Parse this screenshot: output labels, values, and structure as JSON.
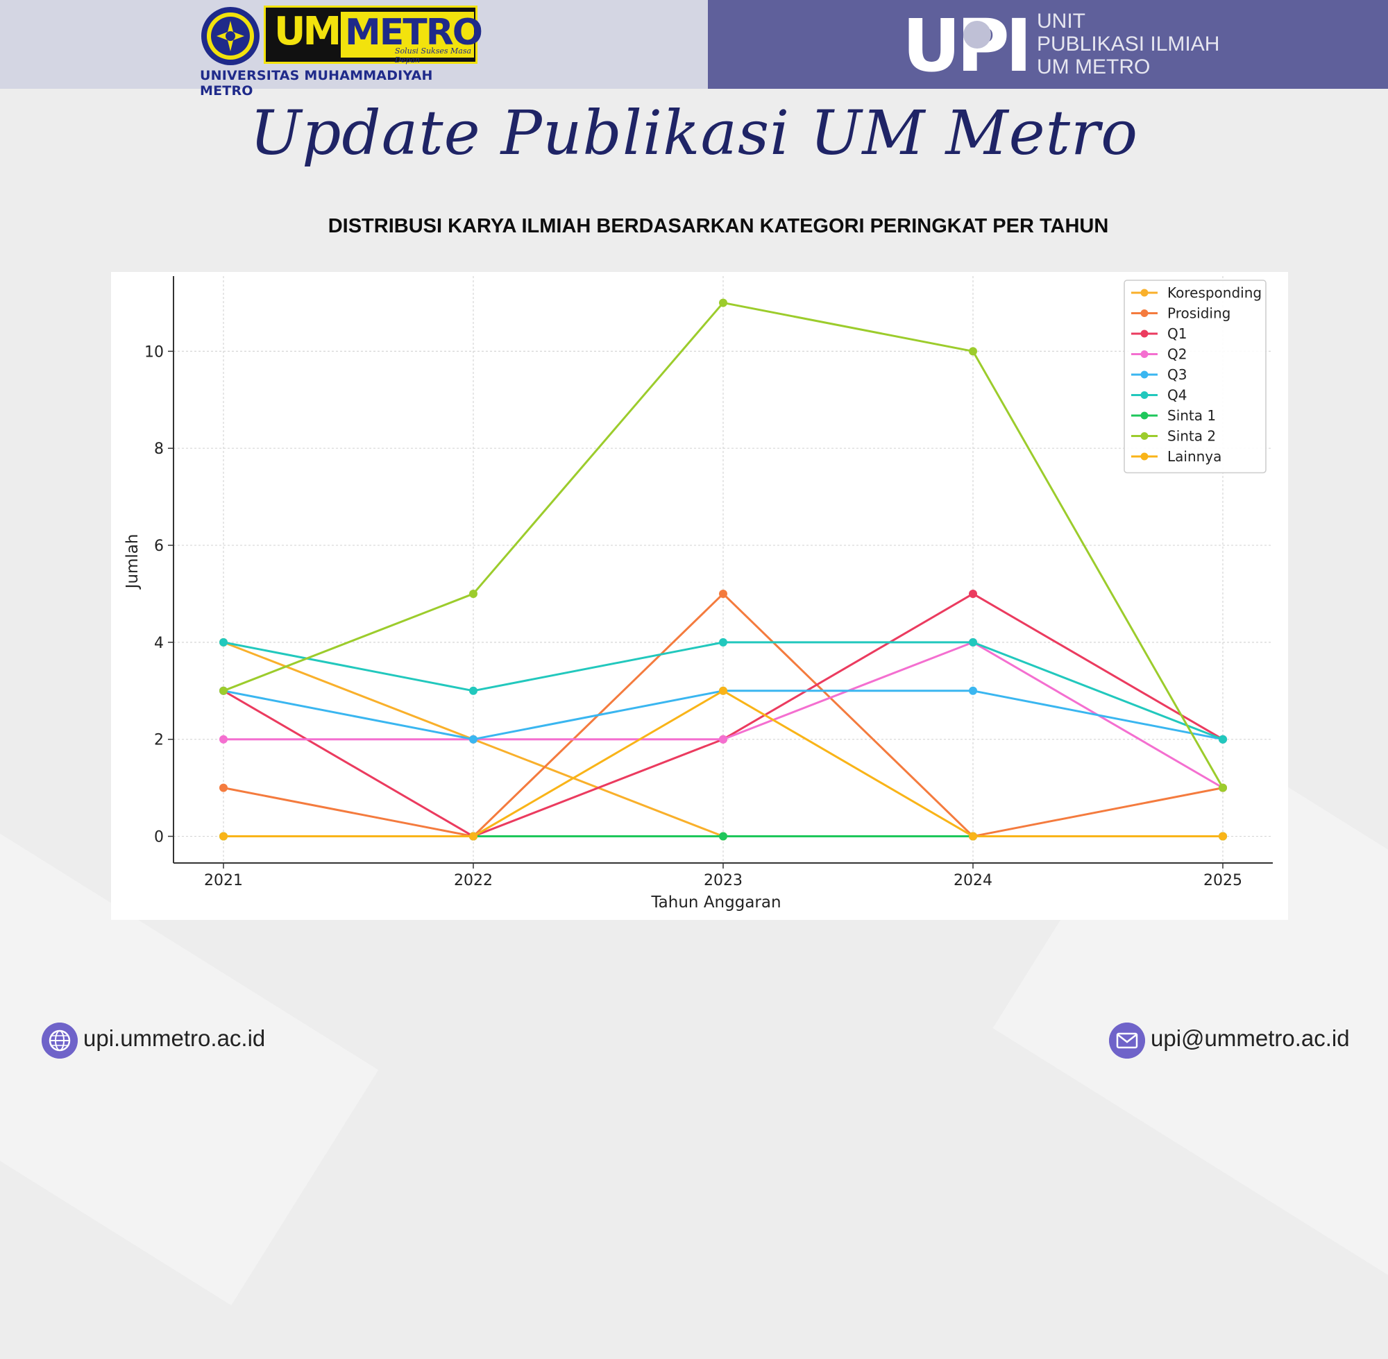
{
  "header": {
    "university_name": "UNIVERSITAS MUHAMMADIYAH METRO",
    "logo_um_text": "UM",
    "logo_metro_text": "METRO",
    "logo_tagline": "Solusi Sukses Masa Depan",
    "upi_logo_text": "UPI",
    "unit_lines": [
      "UNIT",
      "PUBLIKASI ILMIAH",
      "UM METRO"
    ],
    "colors": {
      "left_bg": "#d4d6e3",
      "right_bg": "#5f609b",
      "brand_blue": "#1f2a8a",
      "brand_yellow": "#f2e20d"
    }
  },
  "page": {
    "script_title": "Update Publikasi UM Metro",
    "subtitle": "DISTRIBUSI KARYA ILMIAH BERDASARKAN KATEGORI PERINGKAT PER TAHUN"
  },
  "footer": {
    "website_icon": "globe-icon",
    "website": "upi.ummetro.ac.id",
    "email_icon": "envelope-icon",
    "email": "upi@ummetro.ac.id"
  },
  "chart_data": {
    "type": "line",
    "title": "",
    "xlabel": "Tahun Anggaran",
    "ylabel": "Jumlah",
    "x": [
      "2021",
      "2022",
      "2023",
      "2024",
      "2025"
    ],
    "ylim": [
      -0.55,
      11.55
    ],
    "yticks": [
      0,
      2,
      4,
      6,
      8,
      10
    ],
    "grid": true,
    "legend_position": "top-right",
    "series": [
      {
        "name": "Koresponding",
        "color": "#f9b02b",
        "values": [
          4,
          2,
          0,
          0,
          0
        ]
      },
      {
        "name": "Prosiding",
        "color": "#f47b3e",
        "values": [
          1,
          0,
          5,
          0,
          1
        ]
      },
      {
        "name": "Q1",
        "color": "#eb3b5f",
        "values": [
          3,
          0,
          2,
          5,
          2
        ]
      },
      {
        "name": "Q2",
        "color": "#f46fd0",
        "values": [
          2,
          2,
          2,
          4,
          1
        ]
      },
      {
        "name": "Q3",
        "color": "#3ab6f0",
        "values": [
          3,
          2,
          3,
          3,
          2
        ]
      },
      {
        "name": "Q4",
        "color": "#22c8bd",
        "values": [
          4,
          3,
          4,
          4,
          2
        ]
      },
      {
        "name": "Sinta 1",
        "color": "#1ec75b",
        "values": [
          0,
          0,
          0,
          0,
          0
        ]
      },
      {
        "name": "Sinta 2",
        "color": "#9ccc2c",
        "values": [
          3,
          5,
          11,
          10,
          1
        ]
      },
      {
        "name": "Lainnya",
        "color": "#f9b418",
        "values": [
          0,
          0,
          3,
          0,
          0
        ]
      }
    ]
  }
}
